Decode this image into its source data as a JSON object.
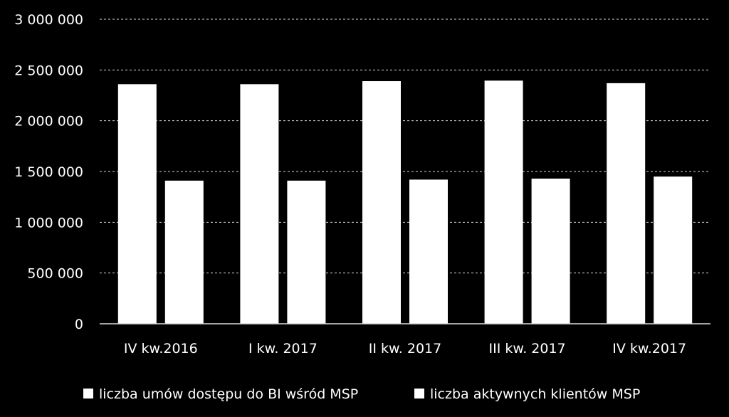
{
  "chart_data": {
    "type": "bar",
    "categories": [
      "IV kw.2016",
      "I kw. 2017",
      "II kw. 2017",
      "III kw. 2017",
      "IV kw.2017"
    ],
    "series": [
      {
        "name": "liczba umów dostępu do BI wśród MSP",
        "values": [
          2360000,
          2360000,
          2390000,
          2395000,
          2370000
        ]
      },
      {
        "name": "liczba aktywnych klientów MSP",
        "values": [
          1410000,
          1410000,
          1420000,
          1430000,
          1450000
        ]
      }
    ],
    "yticks": [
      "0",
      "500 000",
      "1 000 000",
      "1 500 000",
      "2 000 000",
      "2 500 000",
      "3 000 000"
    ],
    "ylim": [
      0,
      3000000
    ],
    "grid": true,
    "legend_position": "bottom",
    "colors": {
      "background": "#000000",
      "bars": "#ffffff",
      "grid": "#d9d9d9",
      "text": "#ffffff"
    }
  }
}
